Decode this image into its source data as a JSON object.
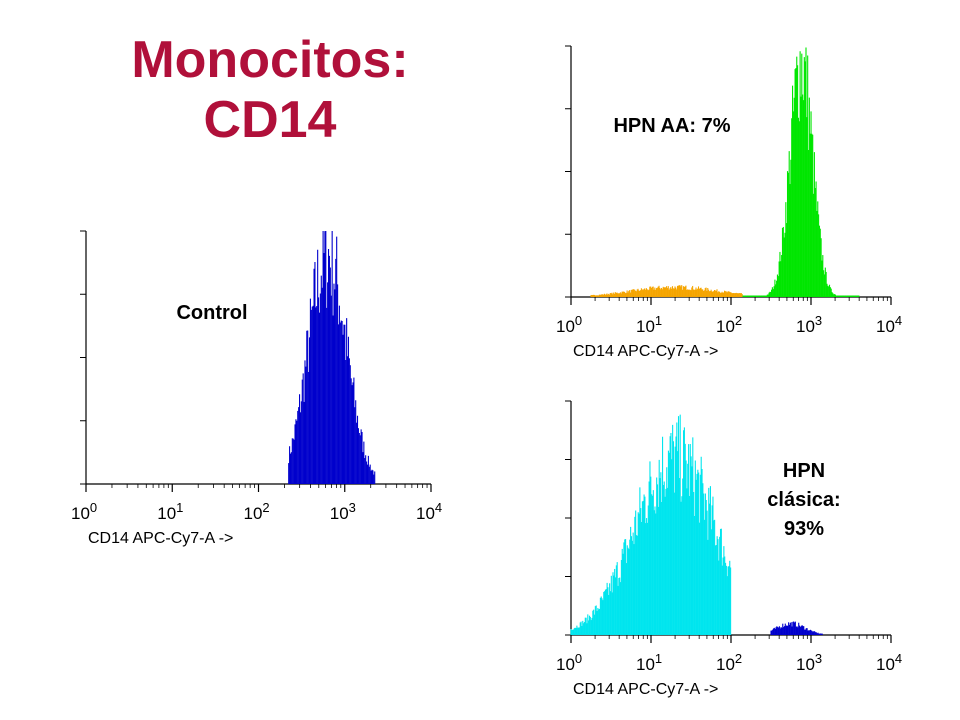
{
  "slide": {
    "title_line1": "Monocitos:",
    "title_line2": "CD14"
  },
  "colors": {
    "title": "#b0103a",
    "control_fill": "#0000cc",
    "hpn_aa_main": "#00e600",
    "hpn_aa_low": "#f5a500",
    "clasica_main": "#00e5ee",
    "clasica_high": "#0000cc"
  },
  "chart_data": [
    {
      "type": "histogram",
      "id": "control",
      "annotation": "Control",
      "xlabel": "CD14 APC-Cy7-A ->",
      "x_scale": "log",
      "xlim": [
        1,
        10000
      ],
      "x_ticks": [
        {
          "base": "10",
          "exp": "0"
        },
        {
          "base": "10",
          "exp": "1"
        },
        {
          "base": "10",
          "exp": "2"
        },
        {
          "base": "10",
          "exp": "3"
        },
        {
          "base": "10",
          "exp": "4"
        }
      ],
      "y_ticks_count": 5,
      "series": [
        {
          "log_center": 2.8,
          "log_sigma": 0.22,
          "peak": 0.93,
          "log_min": 2.35,
          "log_max": 3.35,
          "color_key": "control_fill"
        }
      ]
    },
    {
      "type": "histogram",
      "id": "hpn-aa",
      "annotation": "HPN AA: 7%",
      "xlabel": "CD14 APC-Cy7-A ->",
      "x_scale": "log",
      "xlim": [
        1,
        10000
      ],
      "x_ticks": [
        {
          "base": "10",
          "exp": "0"
        },
        {
          "base": "10",
          "exp": "1"
        },
        {
          "base": "10",
          "exp": "2"
        },
        {
          "base": "10",
          "exp": "3"
        },
        {
          "base": "10",
          "exp": "4"
        }
      ],
      "y_ticks_count": 5,
      "series": [
        {
          "log_center": 1.3,
          "log_sigma": 0.55,
          "peak": 0.04,
          "log_min": 0.25,
          "log_max": 2.15,
          "color_key": "hpn_aa_low"
        },
        {
          "log_center": 2.88,
          "log_sigma": 0.14,
          "peak": 0.96,
          "log_min": 2.15,
          "log_max": 3.6,
          "color_key": "hpn_aa_main"
        }
      ]
    },
    {
      "type": "histogram",
      "id": "hpn-clasica",
      "annotation": [
        "HPN",
        "clásica:",
        "93%"
      ],
      "xlabel": "CD14 APC-Cy7-A ->",
      "x_scale": "log",
      "xlim": [
        1,
        10000
      ],
      "x_ticks": [
        {
          "base": "10",
          "exp": "0"
        },
        {
          "base": "10",
          "exp": "1"
        },
        {
          "base": "10",
          "exp": "2"
        },
        {
          "base": "10",
          "exp": "3"
        },
        {
          "base": "10",
          "exp": "4"
        }
      ],
      "y_ticks_count": 5,
      "series": [
        {
          "log_center": 1.3,
          "log_sigma": 0.5,
          "peak": 0.78,
          "log_min": 0.0,
          "log_max": 2.0,
          "color_key": "clasica_main"
        },
        {
          "log_center": 2.75,
          "log_sigma": 0.18,
          "peak": 0.05,
          "log_min": 2.5,
          "log_max": 3.15,
          "color_key": "clasica_high"
        }
      ]
    }
  ]
}
